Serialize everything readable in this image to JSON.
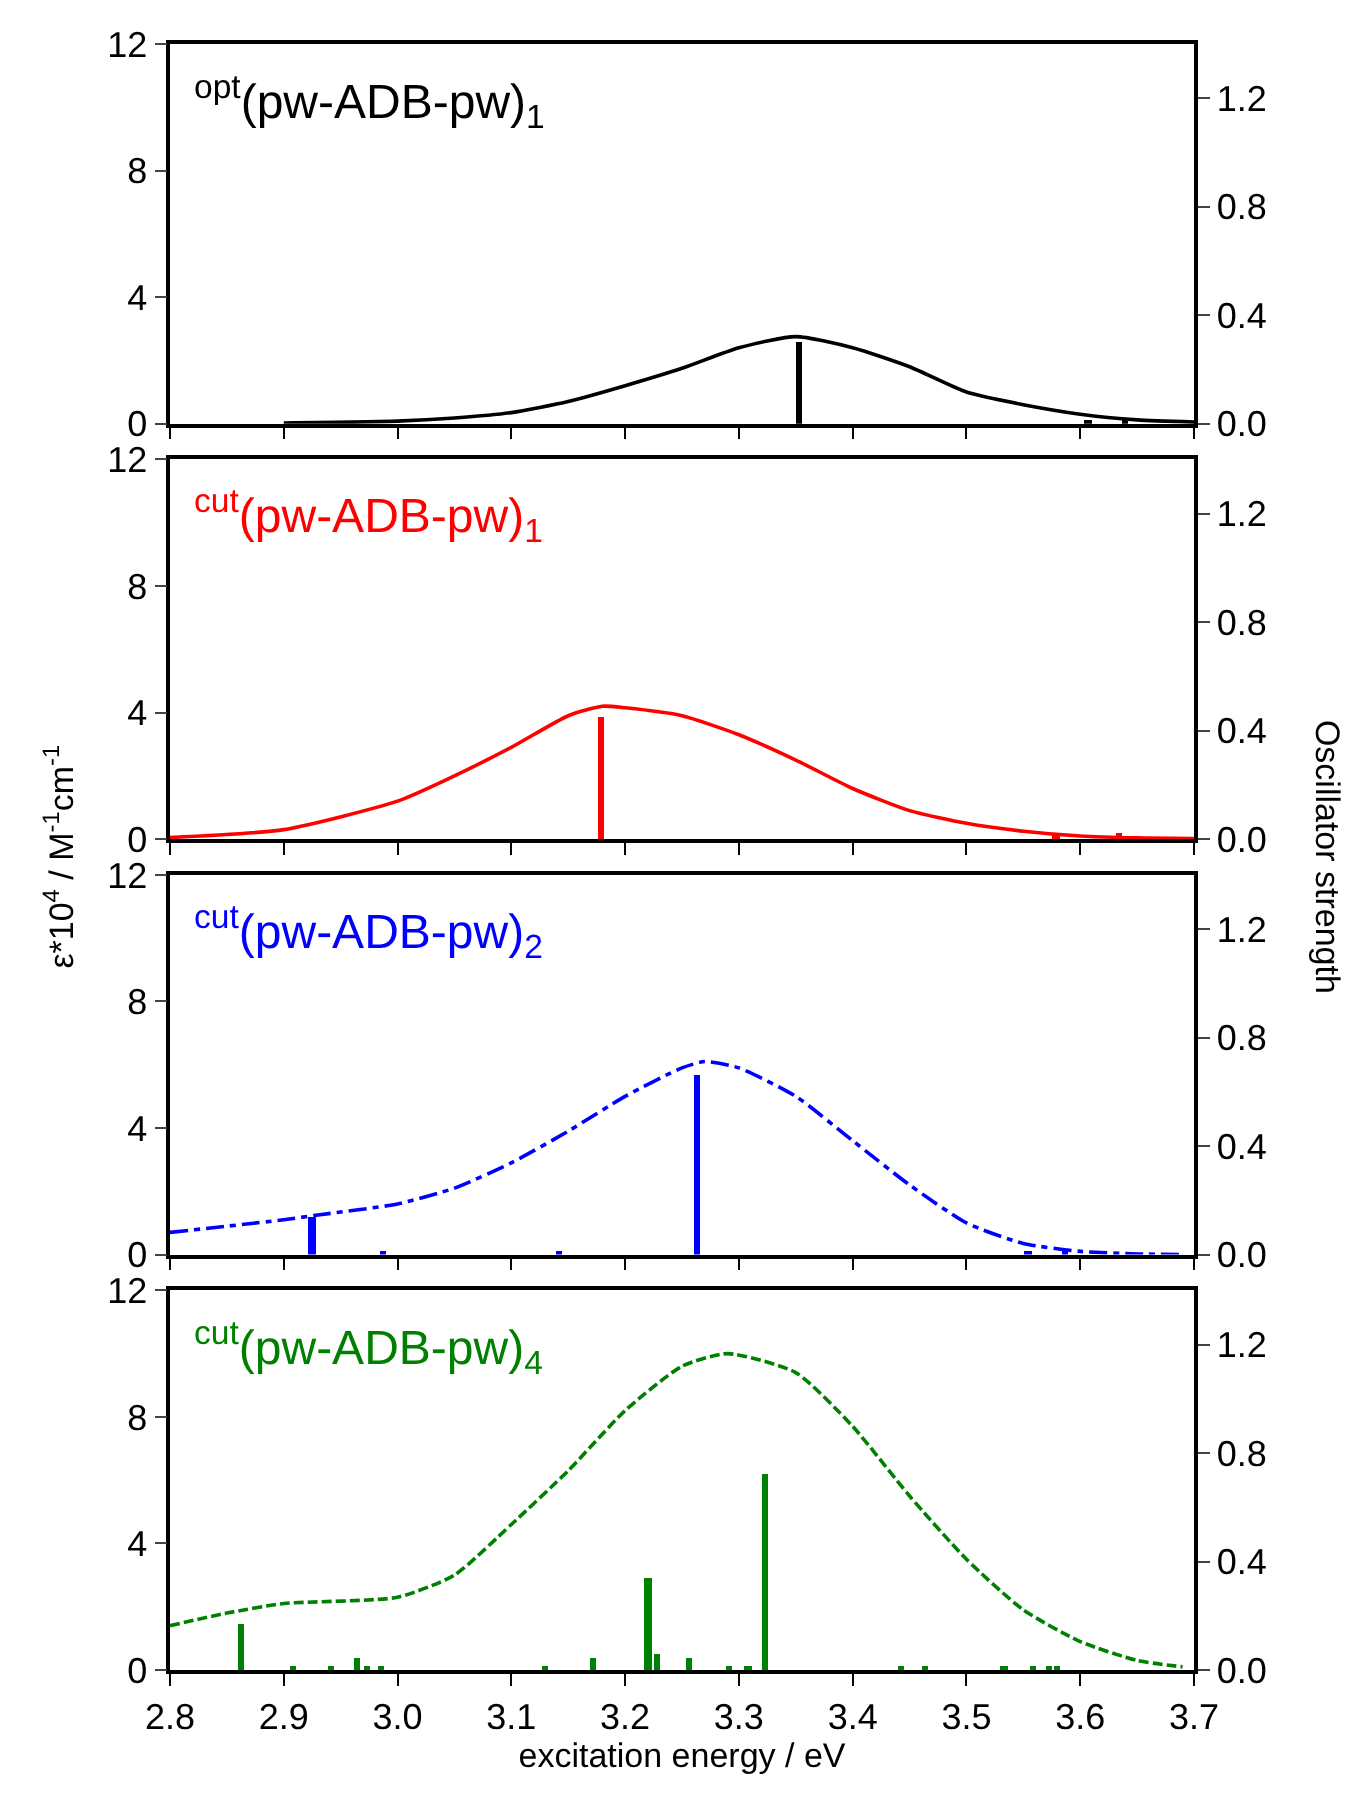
{
  "chart_data": [
    {
      "type": "line",
      "title": "$^{opt}$(pw-ADB-pw)$_{1}$",
      "xlim": [
        2.8,
        3.7
      ],
      "ylim": [
        0,
        12
      ],
      "yticks": [
        0,
        4,
        8,
        12
      ],
      "y2lim": [
        0,
        1.4
      ],
      "y2ticks": [
        {
          "value": 0,
          "label": "0.0"
        },
        {
          "value": 0.4,
          "label": "0.4"
        },
        {
          "value": 0.8,
          "label": "0.8"
        },
        {
          "value": 1.2,
          "label": "1.2"
        }
      ],
      "xticks": [
        {
          "value": 2.8,
          "label": null
        },
        {
          "value": 2.9,
          "label": null
        },
        {
          "value": 3.0,
          "label": null
        },
        {
          "value": 3.1,
          "label": null
        },
        {
          "value": 3.2,
          "label": null
        },
        {
          "value": 3.3,
          "label": null
        },
        {
          "value": 3.4,
          "label": null
        },
        {
          "value": 3.5,
          "label": null
        },
        {
          "value": 3.6,
          "label": null
        },
        {
          "value": 3.7,
          "label": null
        }
      ],
      "tick_labels": "y",
      "series": [
        {
          "color": "#000000",
          "line_style": "solid",
          "x": [
            2.9,
            3.0,
            3.05,
            3.1,
            3.15,
            3.2,
            3.25,
            3.3,
            3.35,
            3.4,
            3.45,
            3.5,
            3.55,
            3.6,
            3.65,
            3.7
          ],
          "values": [
            0.02,
            0.08,
            0.18,
            0.35,
            0.7,
            1.2,
            1.75,
            2.4,
            2.75,
            2.4,
            1.8,
            1.0,
            0.6,
            0.3,
            0.12,
            0.05
          ]
        },
        {
          "type": "bar",
          "axis": "y2",
          "color": "#000000",
          "x": [
            3.353,
            3.607,
            3.639
          ],
          "values": [
            0.3,
            0.01,
            0.01
          ]
        }
      ]
    },
    {
      "type": "line",
      "title": "$^{cut}$(pw-ADB-pw)$_{1}$",
      "ylabel": "ε*10$^{4}$ / M$^{-1}$cm$^{-1}$",
      "y2label": "Oscillator strength",
      "xlim": [
        2.8,
        3.7
      ],
      "ylim": [
        0,
        12
      ],
      "yticks": [
        0,
        4,
        8,
        12
      ],
      "y2lim": [
        0,
        1.4
      ],
      "y2ticks": [
        {
          "value": 0,
          "label": "0.0"
        },
        {
          "value": 0.4,
          "label": "0.4"
        },
        {
          "value": 0.8,
          "label": "0.8"
        },
        {
          "value": 1.2,
          "label": "1.2"
        }
      ],
      "xticks": [
        {
          "value": 2.8,
          "label": null
        },
        {
          "value": 2.9,
          "label": null
        },
        {
          "value": 3.0,
          "label": null
        },
        {
          "value": 3.1,
          "label": null
        },
        {
          "value": 3.2,
          "label": null
        },
        {
          "value": 3.3,
          "label": null
        },
        {
          "value": 3.4,
          "label": null
        },
        {
          "value": 3.5,
          "label": null
        },
        {
          "value": 3.6,
          "label": null
        },
        {
          "value": 3.7,
          "label": null
        }
      ],
      "tick_labels": "y",
      "series": [
        {
          "color": "#ff0000",
          "line_style": "solid",
          "x": [
            2.8,
            2.9,
            3.0,
            3.05,
            3.1,
            3.15,
            3.18,
            3.2,
            3.25,
            3.3,
            3.35,
            3.4,
            3.45,
            3.5,
            3.55,
            3.6,
            3.65,
            3.7
          ],
          "values": [
            0.05,
            0.3,
            1.2,
            2.0,
            2.9,
            3.9,
            4.2,
            4.15,
            3.9,
            3.3,
            2.5,
            1.6,
            0.9,
            0.5,
            0.25,
            0.1,
            0.04,
            0.02
          ]
        },
        {
          "type": "bar",
          "axis": "y2",
          "color": "#ff0000",
          "x": [
            3.179,
            3.579,
            3.634
          ],
          "values": [
            0.45,
            0.02,
            0.02
          ]
        }
      ]
    },
    {
      "type": "line",
      "title": "$^{cut}$(pw-ADB-pw)$_{2}$",
      "xlim": [
        2.8,
        3.7
      ],
      "ylim": [
        0,
        12
      ],
      "yticks": [
        0,
        4,
        8,
        12
      ],
      "y2lim": [
        0,
        1.4
      ],
      "y2ticks": [
        {
          "value": 0,
          "label": "0.0"
        },
        {
          "value": 0.4,
          "label": "0.4"
        },
        {
          "value": 0.8,
          "label": "0.8"
        },
        {
          "value": 1.2,
          "label": "1.2"
        }
      ],
      "xticks": [
        {
          "value": 2.8,
          "label": null
        },
        {
          "value": 2.9,
          "label": null
        },
        {
          "value": 3.0,
          "label": null
        },
        {
          "value": 3.1,
          "label": null
        },
        {
          "value": 3.2,
          "label": null
        },
        {
          "value": 3.3,
          "label": null
        },
        {
          "value": 3.4,
          "label": null
        },
        {
          "value": 3.5,
          "label": null
        },
        {
          "value": 3.6,
          "label": null
        },
        {
          "value": 3.7,
          "label": null
        }
      ],
      "tick_labels": "y",
      "series": [
        {
          "color": "#0000ff",
          "line_style": "dashdot",
          "x": [
            2.8,
            2.9,
            2.93,
            3.0,
            3.05,
            3.1,
            3.15,
            3.2,
            3.25,
            3.27,
            3.3,
            3.35,
            3.4,
            3.45,
            3.5,
            3.55,
            3.6,
            3.65,
            3.69
          ],
          "values": [
            0.7,
            1.1,
            1.25,
            1.6,
            2.1,
            2.9,
            3.9,
            5.0,
            5.9,
            6.1,
            5.9,
            5.0,
            3.6,
            2.2,
            1.0,
            0.35,
            0.1,
            0.02,
            0.0
          ]
        },
        {
          "type": "bar",
          "axis": "y2",
          "color": "#0000ff",
          "x": [
            2.925,
            2.987,
            3.142,
            3.263,
            3.554,
            3.587
          ],
          "values": [
            0.14,
            0.01,
            0.01,
            0.66,
            0.01,
            0.01
          ]
        }
      ]
    },
    {
      "type": "line",
      "title": "$^{cut}$(pw-ADB-pw)$_{4}$",
      "xlabel": "excitation energy / eV",
      "xlim": [
        2.8,
        3.7
      ],
      "ylim": [
        0,
        12
      ],
      "yticks": [
        0,
        4,
        8,
        12
      ],
      "y2lim": [
        0,
        1.4
      ],
      "y2ticks": [
        {
          "value": 0,
          "label": "0.0"
        },
        {
          "value": 0.4,
          "label": "0.4"
        },
        {
          "value": 0.8,
          "label": "0.8"
        },
        {
          "value": 1.2,
          "label": "1.2"
        }
      ],
      "xticks": [
        {
          "value": 2.8,
          "label": "2.8"
        },
        {
          "value": 2.9,
          "label": "2.9"
        },
        {
          "value": 3.0,
          "label": "3.0"
        },
        {
          "value": 3.1,
          "label": "3.1"
        },
        {
          "value": 3.2,
          "label": "3.2"
        },
        {
          "value": 3.3,
          "label": "3.3"
        },
        {
          "value": 3.4,
          "label": "3.4"
        },
        {
          "value": 3.5,
          "label": "3.5"
        },
        {
          "value": 3.6,
          "label": "3.6"
        },
        {
          "value": 3.7,
          "label": "3.7"
        }
      ],
      "series": [
        {
          "color": "#008000",
          "line_style": "dashed",
          "x": [
            2.8,
            2.85,
            2.9,
            3.0,
            3.05,
            3.1,
            3.15,
            3.2,
            3.25,
            3.29,
            3.35,
            3.4,
            3.45,
            3.5,
            3.55,
            3.6,
            3.65,
            3.69
          ],
          "values": [
            1.4,
            1.8,
            2.1,
            2.3,
            3.0,
            4.6,
            6.3,
            8.2,
            9.6,
            10.0,
            9.4,
            7.7,
            5.5,
            3.5,
            1.9,
            0.9,
            0.3,
            0.1
          ]
        },
        {
          "type": "bar",
          "axis": "y2",
          "color": "#008000",
          "x": [
            2.862,
            2.908,
            2.942,
            2.964,
            2.973,
            2.985,
            3.13,
            3.172,
            3.22,
            3.228,
            3.256,
            3.291,
            3.308,
            3.323,
            3.442,
            3.464,
            3.533,
            3.558,
            3.573,
            3.58
          ],
          "values": [
            0.17,
            0.01,
            0.01,
            0.045,
            0.01,
            0.01,
            0.01,
            0.04,
            0.34,
            0.055,
            0.045,
            0.01,
            0.01,
            0.72,
            0.01,
            0.01,
            0.01,
            0.01,
            0.01,
            0.01
          ]
        }
      ]
    }
  ]
}
